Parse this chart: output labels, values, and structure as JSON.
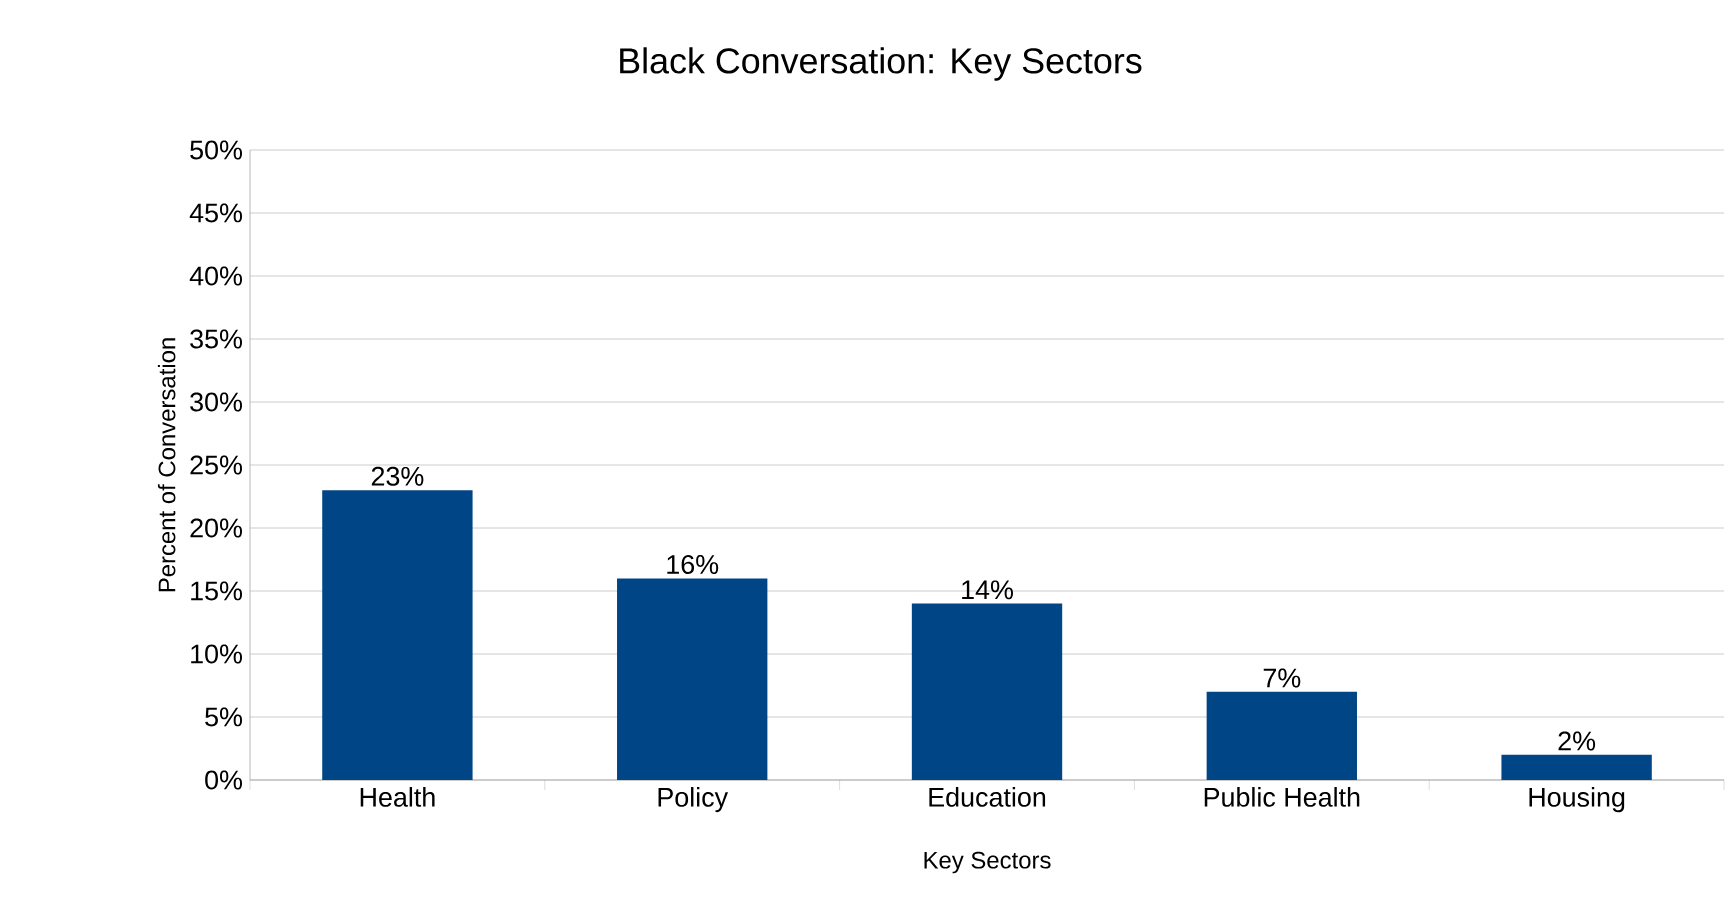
{
  "chart_data": {
    "type": "bar",
    "title": "Black Conversation: Key Sectors",
    "xlabel": "Key Sectors",
    "ylabel": "Percent of Conversation",
    "categories": [
      "Health",
      "Policy",
      "Education",
      "Public Health",
      "Housing"
    ],
    "values": [
      23,
      16,
      14,
      7,
      2
    ],
    "value_labels": [
      "23%",
      "16%",
      "14%",
      "7%",
      "2%"
    ],
    "color": "#004586",
    "ylim": [
      0,
      50
    ],
    "yticks": [
      {
        "value": 0,
        "label": "0%"
      },
      {
        "value": 5,
        "label": "5%"
      },
      {
        "value": 10,
        "label": "10%"
      },
      {
        "value": 15,
        "label": "15%"
      },
      {
        "value": 20,
        "label": "20%"
      },
      {
        "value": 25,
        "label": "25%"
      },
      {
        "value": 30,
        "label": "30%"
      },
      {
        "value": 35,
        "label": "35%"
      },
      {
        "value": 40,
        "label": "40%"
      },
      {
        "value": 45,
        "label": "45%"
      },
      {
        "value": 50,
        "label": "50%"
      }
    ],
    "grid": "y"
  }
}
